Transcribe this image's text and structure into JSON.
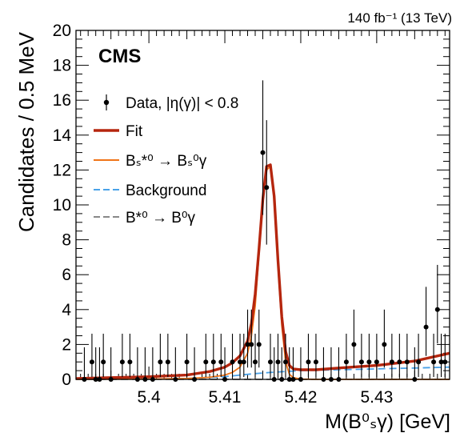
{
  "chart_data": {
    "type": "scatter",
    "lumi_label": "140 fb⁻¹ (13 TeV)",
    "experiment_label": "CMS",
    "ylabel": "Candidates / 0.5 MeV",
    "xlabel": "M(B⁰ₛγ) [GeV]",
    "xlim": [
      5.3904,
      5.4396
    ],
    "ylim": [
      0,
      20
    ],
    "x_ticks": [
      5.4,
      5.41,
      5.42,
      5.43
    ],
    "x_tick_labels": [
      "5.4",
      "5.41",
      "5.42",
      "5.43"
    ],
    "y_ticks": [
      0,
      2,
      4,
      6,
      8,
      10,
      12,
      14,
      16,
      18,
      20
    ],
    "y_tick_labels": [
      "0",
      "2",
      "4",
      "6",
      "8",
      "10",
      "12",
      "14",
      "16",
      "18",
      "20"
    ],
    "legend": {
      "placement": "upper-left",
      "entries": [
        {
          "label": "Data, |η(γ)| < 0.8",
          "style": "marker",
          "color": "#000000"
        },
        {
          "label": "Fit",
          "style": "thick-line",
          "color": "#b5260e"
        },
        {
          "label": "Bₛ*⁰ → Bₛ⁰γ",
          "style": "line",
          "color": "#f07418"
        },
        {
          "label": "Background",
          "style": "dashed",
          "color": "#4aa2e8"
        },
        {
          "label": "B*⁰ → B⁰γ",
          "style": "dashed",
          "color": "#888888"
        }
      ]
    },
    "series": [
      {
        "name": "Data, |η(γ)| < 0.8",
        "kind": "points",
        "color": "#000000",
        "x": [
          5.3915,
          5.3925,
          5.393,
          5.3935,
          5.394,
          5.395,
          5.3965,
          5.3975,
          5.3985,
          5.3995,
          5.4005,
          5.4015,
          5.4025,
          5.4035,
          5.405,
          5.406,
          5.4075,
          5.4085,
          5.4095,
          5.41,
          5.411,
          5.412,
          5.4125,
          5.413,
          5.4135,
          5.414,
          5.4145,
          5.415,
          5.4155,
          5.416,
          5.4165,
          5.417,
          5.4175,
          5.418,
          5.4185,
          5.419,
          5.42,
          5.421,
          5.422,
          5.423,
          5.424,
          5.425,
          5.426,
          5.427,
          5.428,
          5.429,
          5.43,
          5.431,
          5.432,
          5.433,
          5.434,
          5.435,
          5.4355,
          5.4365,
          5.4375,
          5.438,
          5.4385,
          5.439
        ],
        "y": [
          0,
          1,
          0,
          0,
          1,
          0,
          1,
          1,
          0,
          0,
          0,
          1,
          1,
          0,
          1,
          0,
          1,
          1,
          1,
          0,
          1,
          1,
          1,
          2,
          2,
          1,
          2,
          13,
          11,
          1,
          0,
          1,
          0,
          1,
          0,
          0,
          0,
          1,
          1,
          0,
          0,
          0,
          1,
          2,
          1,
          1,
          1,
          2,
          1,
          1,
          1,
          0,
          1,
          3,
          1,
          4,
          1,
          1
        ]
      },
      {
        "name": "Fit",
        "kind": "curve",
        "color": "#b5260e",
        "x": [
          5.3904,
          5.395,
          5.4,
          5.405,
          5.408,
          5.41,
          5.411,
          5.412,
          5.413,
          5.4135,
          5.414,
          5.4145,
          5.415,
          5.4155,
          5.416,
          5.4165,
          5.417,
          5.4175,
          5.418,
          5.4185,
          5.419,
          5.42,
          5.422,
          5.425,
          5.43,
          5.435,
          5.4396
        ],
        "y": [
          0.05,
          0.1,
          0.15,
          0.25,
          0.45,
          0.7,
          0.95,
          1.35,
          2.2,
          3.2,
          4.9,
          7.5,
          10.3,
          12.2,
          12.3,
          10.5,
          6.8,
          3.6,
          1.6,
          0.8,
          0.6,
          0.55,
          0.55,
          0.65,
          0.8,
          1.05,
          1.5
        ]
      },
      {
        "name": "Bₛ*⁰ → Bₛ⁰γ",
        "kind": "curve",
        "color": "#f07418",
        "x": [
          5.3904,
          5.4,
          5.405,
          5.408,
          5.41,
          5.411,
          5.412,
          5.413,
          5.4135,
          5.414,
          5.4145,
          5.415,
          5.4155,
          5.416,
          5.4165,
          5.417,
          5.4175,
          5.418,
          5.4185,
          5.419,
          5.42,
          5.422,
          5.425,
          5.4396
        ],
        "y": [
          0,
          0.02,
          0.05,
          0.12,
          0.25,
          0.4,
          0.7,
          1.5,
          2.5,
          4.2,
          7.2,
          10.2,
          12.0,
          12.2,
          10.3,
          6.5,
          3.1,
          1.0,
          0.3,
          0.1,
          0.02,
          0,
          0,
          0
        ]
      },
      {
        "name": "Background",
        "kind": "curve",
        "dashed": true,
        "color": "#4aa2e8",
        "x": [
          5.3904,
          5.4,
          5.405,
          5.41,
          5.412,
          5.414,
          5.416,
          5.418,
          5.42,
          5.425,
          5.43,
          5.435,
          5.4396
        ],
        "y": [
          0,
          0.01,
          0.05,
          0.15,
          0.25,
          0.33,
          0.4,
          0.45,
          0.5,
          0.55,
          0.6,
          0.65,
          0.7
        ]
      },
      {
        "name": "B*⁰ → B⁰γ",
        "kind": "curve",
        "dashed": true,
        "color": "#888888",
        "x": [
          5.3904,
          5.4396
        ],
        "y": [
          0,
          0
        ]
      }
    ]
  }
}
